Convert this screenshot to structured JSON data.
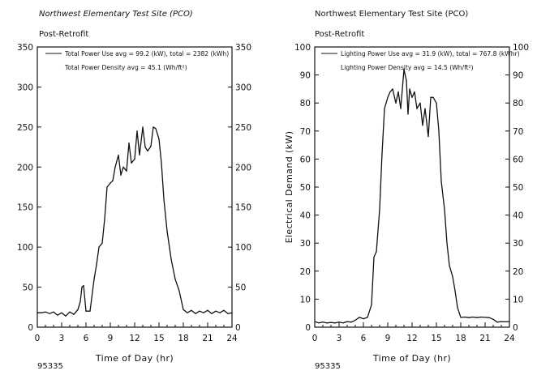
{
  "chart_data": [
    {
      "type": "line",
      "title": "Northwest  Elementary Test Site  (PCO)",
      "subtitle": "Post-Retrofit",
      "xlabel": "Time of Day (hr)",
      "ylabel": "",
      "xlim": [
        0,
        24
      ],
      "ylim": [
        0,
        350
      ],
      "xticks": [
        "0",
        "3",
        "6",
        "9",
        "12",
        "15",
        "18",
        "21",
        "24"
      ],
      "yticks": [
        "0",
        "50",
        "100",
        "150",
        "200",
        "250",
        "300",
        "350"
      ],
      "legend": [
        "Total Power Use   avg = 99.2 (kW), total = 2382 (kWh)",
        "Total Power Density            avg = 45.1 (Wh/ft²)"
      ],
      "footer": "95335",
      "grid": false,
      "series": [
        {
          "x": [
            0,
            0.5,
            1,
            1.5,
            2,
            2.5,
            3,
            3.5,
            4,
            4.5,
            5,
            5.3,
            5.5,
            5.7,
            6,
            6.5,
            7,
            7.3,
            7.6,
            8,
            8.3,
            8.6,
            9,
            9.3,
            9.6,
            10,
            10.3,
            10.6,
            11,
            11.3,
            11.6,
            12,
            12.3,
            12.6,
            13,
            13.3,
            13.6,
            14,
            14.3,
            14.6,
            15,
            15.3,
            15.6,
            16,
            16.5,
            17,
            17.5,
            18,
            18.5,
            19,
            19.5,
            20,
            20.5,
            21,
            21.5,
            22,
            22.5,
            23,
            23.5,
            24
          ],
          "values": [
            18,
            18,
            19,
            17,
            19,
            15,
            18,
            14,
            19,
            16,
            22,
            32,
            50,
            52,
            20,
            20,
            60,
            78,
            100,
            105,
            135,
            175,
            180,
            183,
            200,
            215,
            190,
            200,
            195,
            230,
            205,
            210,
            245,
            215,
            250,
            225,
            220,
            226,
            250,
            248,
            235,
            205,
            160,
            120,
            85,
            60,
            45,
            22,
            18,
            21,
            17,
            20,
            18,
            21,
            17,
            20,
            18,
            21,
            17,
            18
          ]
        }
      ]
    },
    {
      "type": "line",
      "title": "Northwest  Elementary Test Site  (PCO)",
      "subtitle": "Post-Retrofit",
      "xlabel": "Time of Day (hr)",
      "ylabel": "Electrical Demand (kW)",
      "xlim": [
        0,
        24
      ],
      "ylim": [
        0,
        100
      ],
      "xticks": [
        "0",
        "3",
        "6",
        "9",
        "12",
        "15",
        "18",
        "21",
        "24"
      ],
      "yticks": [
        "0",
        "10",
        "20",
        "30",
        "40",
        "50",
        "60",
        "70",
        "80",
        "90",
        "100"
      ],
      "legend": [
        "Lighting Power Use   avg = 31.9 (kW), total = 767.8 (kWhr)",
        "Lighting Power Density             avg = 14.5 (Wh/ft²)"
      ],
      "footer": "95335",
      "grid": false,
      "series": [
        {
          "x": [
            0,
            0.5,
            1,
            1.5,
            2,
            2.5,
            3,
            3.5,
            4,
            4.5,
            5,
            5.5,
            6,
            6.5,
            7,
            7.3,
            7.6,
            8,
            8.3,
            8.6,
            9,
            9.3,
            9.6,
            10,
            10.3,
            10.6,
            11,
            11.3,
            11.5,
            11.7,
            12,
            12.3,
            12.6,
            13,
            13.3,
            13.6,
            14,
            14.3,
            14.6,
            15,
            15.3,
            15.6,
            16,
            16.3,
            16.6,
            17,
            17.3,
            17.6,
            18,
            18.5,
            19,
            19.5,
            20,
            20.5,
            21,
            21.5,
            22,
            22.5,
            23,
            23.5,
            24
          ],
          "values": [
            2,
            1.5,
            1.8,
            1.5,
            1.7,
            1.5,
            1.8,
            1.5,
            2,
            1.8,
            2.5,
            3.5,
            3,
            3.5,
            8,
            25,
            27,
            42,
            62,
            78,
            82,
            84,
            85,
            80,
            84,
            78,
            92,
            88,
            76,
            85,
            82,
            84,
            78,
            80,
            72,
            78,
            68,
            82,
            82,
            80,
            70,
            52,
            42,
            30,
            22,
            18,
            13,
            7,
            3.5,
            3.6,
            3.4,
            3.6,
            3.4,
            3.6,
            3.5,
            3.4,
            2.8,
            1.8,
            2,
            1.9,
            2
          ]
        }
      ]
    }
  ]
}
